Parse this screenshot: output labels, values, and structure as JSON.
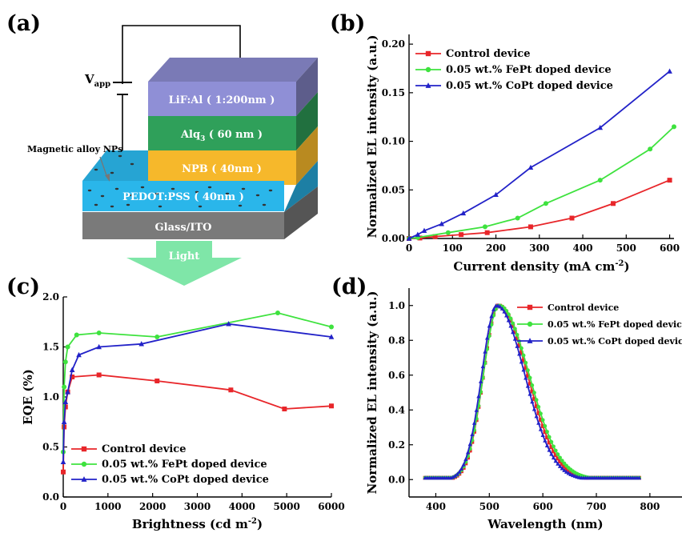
{
  "panels": {
    "a": "(a)",
    "b": "(b)",
    "c": "(c)",
    "d": "(d)"
  },
  "device": {
    "vapp": "V",
    "vapp_sub": "app",
    "np_label": "Magnetic alloy NPs",
    "light": "Light",
    "layers": {
      "lif": "LiF:Al ( 1:200nm )",
      "alq_main": "Alq",
      "alq_sub": "3",
      "alq_rest": " ( 60 nm )",
      "npb": "NPB ( 40nm )",
      "pedot": "PEDOT:PSS ( 40nm )",
      "glass": "Glass/ITO"
    },
    "colors": {
      "lif": "#8f8fd6",
      "alq": "#2fa05a",
      "npb": "#f6b82b",
      "pedot": "#2ab6ea",
      "glass": "#7a7a7a",
      "light": "#7fe6a8"
    }
  },
  "chart_data": [
    {
      "id": "b",
      "type": "line",
      "xlabel_main": "Current density (mA cm",
      "xlabel_sup": "-2",
      "xlabel_end": ")",
      "ylabel": "Normalized EL intensity (a.u.)",
      "xlim": [
        0,
        610
      ],
      "ylim": [
        0,
        0.21
      ],
      "xticks": [
        0,
        100,
        200,
        300,
        400,
        500,
        600
      ],
      "yticks": [
        0.0,
        0.05,
        0.1,
        0.15,
        0.2
      ],
      "ytick_labels": [
        "0.00",
        "0.05",
        "0.10",
        "0.15",
        "0.20"
      ],
      "legend_position": "top-left",
      "series": [
        {
          "name": "Control device",
          "color": "#e8262a",
          "marker": "square",
          "x": [
            0,
            25,
            60,
            120,
            180,
            280,
            375,
            470,
            600
          ],
          "y": [
            0,
            0.0005,
            0.002,
            0.004,
            0.006,
            0.012,
            0.021,
            0.036,
            0.06
          ]
        },
        {
          "name": "0.05 wt.% FePt doped device",
          "color": "#3ee23e",
          "marker": "circle",
          "x": [
            0,
            20,
            90,
            175,
            250,
            315,
            440,
            555,
            610
          ],
          "y": [
            0,
            0.001,
            0.006,
            0.012,
            0.021,
            0.036,
            0.06,
            0.092,
            0.115
          ]
        },
        {
          "name": "0.05 wt.% CoPt doped device",
          "color": "#2222c8",
          "marker": "triangle",
          "x": [
            0,
            20,
            35,
            75,
            125,
            200,
            280,
            440,
            600
          ],
          "y": [
            0,
            0.004,
            0.008,
            0.015,
            0.026,
            0.045,
            0.073,
            0.114,
            0.172
          ]
        }
      ]
    },
    {
      "id": "c",
      "type": "line",
      "xlabel_main": "Brightness (cd m",
      "xlabel_sup": "-2",
      "xlabel_end": ")",
      "ylabel": "EQE (%)",
      "xlim": [
        0,
        6000
      ],
      "ylim": [
        0,
        2.0
      ],
      "xticks": [
        0,
        1000,
        2000,
        3000,
        4000,
        5000,
        6000
      ],
      "yticks": [
        0.0,
        0.5,
        1.0,
        1.5,
        2.0
      ],
      "ytick_labels": [
        "0.0",
        "0.5",
        "1.0",
        "1.5",
        "2.0"
      ],
      "legend_position": "bottom-left",
      "series": [
        {
          "name": "Control device",
          "color": "#e8262a",
          "marker": "square",
          "x": [
            0,
            20,
            50,
            100,
            200,
            800,
            2100,
            3750,
            4950,
            6000
          ],
          "y": [
            0.25,
            0.7,
            0.9,
            1.05,
            1.2,
            1.22,
            1.16,
            1.07,
            0.88,
            0.91
          ]
        },
        {
          "name": "0.05 wt.% FePt doped device",
          "color": "#3ee23e",
          "marker": "circle",
          "x": [
            0,
            20,
            50,
            100,
            300,
            800,
            2100,
            4800,
            6000
          ],
          "y": [
            0.45,
            1.1,
            1.35,
            1.5,
            1.62,
            1.64,
            1.6,
            1.84,
            1.7
          ]
        },
        {
          "name": "0.05 wt.% CoPt doped device",
          "color": "#2222c8",
          "marker": "triangle",
          "x": [
            0,
            20,
            50,
            100,
            200,
            350,
            800,
            1750,
            3700,
            6000
          ],
          "y": [
            0.35,
            0.75,
            0.95,
            1.05,
            1.27,
            1.42,
            1.5,
            1.53,
            1.73,
            1.6
          ]
        }
      ]
    },
    {
      "id": "d",
      "type": "line",
      "xlabel_main": "Wavelength (nm)",
      "xlabel_sup": "",
      "xlabel_end": "",
      "ylabel": "Normalized EL intensity (a.u.)",
      "xlim": [
        350,
        860
      ],
      "ylim": [
        -0.1,
        1.1
      ],
      "xticks": [
        400,
        500,
        600,
        700,
        800
      ],
      "yticks": [
        0.0,
        0.2,
        0.4,
        0.6,
        0.8,
        1.0
      ],
      "ytick_labels": [
        "0.0",
        "0.2",
        "0.4",
        "0.6",
        "0.8",
        "1.0"
      ],
      "legend_position": "top-right",
      "x_range": [
        380,
        780
      ],
      "x_step": 4,
      "series": [
        {
          "name": "Control device",
          "color": "#e8262a",
          "marker": "square",
          "peak": 517,
          "sigma_left": 28,
          "sigma_right": 54,
          "floor": 0.01
        },
        {
          "name": "0.05 wt.% FePt doped device",
          "color": "#3ee23e",
          "marker": "circle",
          "peak": 518,
          "sigma_left": 29,
          "sigma_right": 56,
          "floor": 0.01
        },
        {
          "name": "0.05 wt.% CoPt doped device",
          "color": "#2222c8",
          "marker": "triangle",
          "peak": 514,
          "sigma_left": 28,
          "sigma_right": 52,
          "floor": 0.01
        }
      ]
    }
  ]
}
